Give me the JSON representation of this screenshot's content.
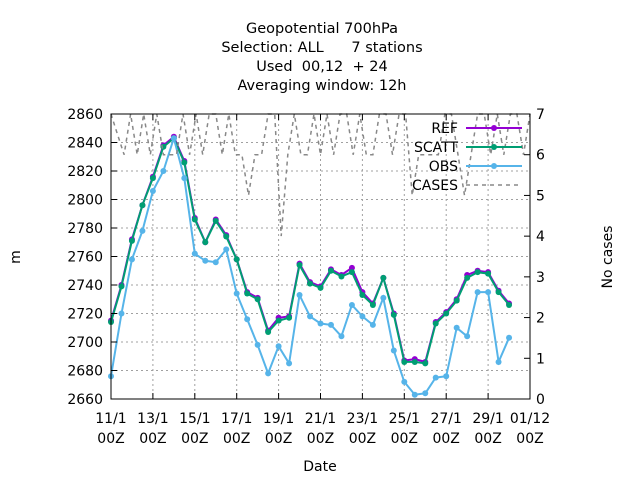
{
  "chart_data": {
    "type": "line",
    "title_lines": [
      "Geopotential 700hPa",
      "Selection: ALL      7 stations",
      "Used  00,12  + 24",
      "Averaging window: 12h"
    ],
    "xlabel": "Date",
    "ylabel": "m",
    "y2label": "No cases",
    "ylim": [
      2660,
      2860
    ],
    "y2lim": [
      0,
      7
    ],
    "yticks": [
      2660,
      2680,
      2700,
      2720,
      2740,
      2760,
      2780,
      2800,
      2820,
      2840,
      2860
    ],
    "y2ticks": [
      0,
      1,
      2,
      3,
      4,
      5,
      6,
      7
    ],
    "xticks": [
      {
        "top": "11/1",
        "bottom": "00Z"
      },
      {
        "top": "13/1",
        "bottom": "00Z"
      },
      {
        "top": "15/1",
        "bottom": "00Z"
      },
      {
        "top": "17/1",
        "bottom": "00Z"
      },
      {
        "top": "19/1",
        "bottom": "00Z"
      },
      {
        "top": "21/1",
        "bottom": "00Z"
      },
      {
        "top": "23/1",
        "bottom": "00Z"
      },
      {
        "top": "25/1",
        "bottom": "00Z"
      },
      {
        "top": "27/1",
        "bottom": "00Z"
      },
      {
        "top": "29/1",
        "bottom": "00Z"
      },
      {
        "top": "01/12",
        "bottom": "00Z"
      }
    ],
    "grid": true,
    "legend_position": "top-right",
    "series": [
      {
        "name": "REF",
        "color": "#9400d3",
        "marker": "circle",
        "axis": "y1",
        "values": [
          2715,
          2740,
          2772,
          2796,
          2816,
          2838,
          2844,
          2827,
          2787,
          2770,
          2786,
          2775,
          2758,
          2735,
          2731,
          2708,
          2717,
          2718,
          2755,
          2742,
          2739,
          2751,
          2747,
          2752,
          2735,
          2727,
          2745,
          2720,
          2687,
          2688,
          2686,
          2714,
          2721,
          2730,
          2747,
          2750,
          2749,
          2736,
          2727
        ]
      },
      {
        "name": "SCATT",
        "color": "#009e73",
        "marker": "circle",
        "axis": "y1",
        "values": [
          2714,
          2739,
          2771,
          2796,
          2815,
          2837,
          2843,
          2826,
          2786,
          2770,
          2785,
          2774,
          2758,
          2734,
          2730,
          2707,
          2715,
          2717,
          2754,
          2741,
          2738,
          2750,
          2746,
          2749,
          2733,
          2726,
          2745,
          2719,
          2686,
          2686,
          2685,
          2713,
          2720,
          2729,
          2745,
          2749,
          2748,
          2735,
          2726
        ]
      },
      {
        "name": "OBS",
        "color": "#56b4e9",
        "marker": "circle",
        "axis": "y1",
        "values": [
          2676,
          2720,
          2758,
          2778,
          2806,
          2820,
          2843,
          2815,
          2762,
          2757,
          2756,
          2765,
          2734,
          2716,
          2698,
          2678,
          2697,
          2685,
          2733,
          2718,
          2713,
          2712,
          2704,
          2726,
          2718,
          2712,
          2731,
          2694,
          2672,
          2663,
          2664,
          2675,
          2676,
          2710,
          2704,
          2735,
          2735,
          2686,
          2703
        ]
      },
      {
        "name": "CASES",
        "color": "#888888",
        "dashed": true,
        "axis": "y2",
        "values": [
          7,
          6.5,
          6,
          7,
          6,
          7,
          6,
          7,
          6,
          6,
          6,
          7,
          6,
          7,
          6,
          7,
          7,
          6,
          7,
          6,
          6,
          5,
          6,
          6,
          7,
          7,
          4,
          6,
          7,
          6,
          6,
          7,
          6,
          7,
          6,
          7,
          7,
          6,
          7,
          6,
          6,
          7,
          7,
          6,
          7,
          7,
          5,
          6,
          6,
          6,
          6,
          7,
          7,
          6,
          5,
          6,
          7,
          7,
          6,
          7,
          6,
          7,
          7,
          6,
          7
        ]
      }
    ]
  }
}
